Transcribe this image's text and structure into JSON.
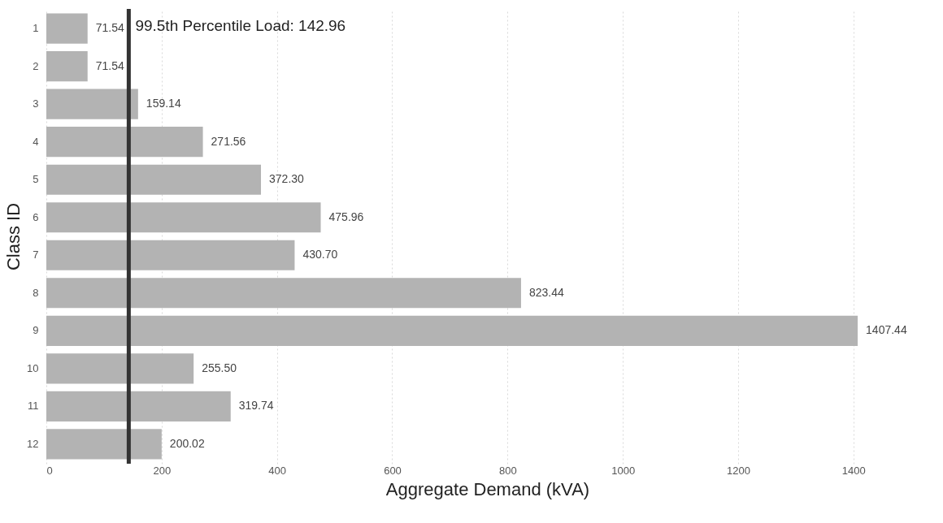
{
  "chart_data": {
    "type": "bar",
    "orientation": "horizontal",
    "xlabel": "Aggregate Demand (kVA)",
    "ylabel": "Class ID",
    "categories": [
      "1",
      "2",
      "3",
      "4",
      "5",
      "6",
      "7",
      "8",
      "9",
      "10",
      "11",
      "12"
    ],
    "values": [
      71.54,
      71.54,
      159.14,
      271.56,
      372.3,
      475.96,
      430.7,
      823.44,
      1407.44,
      255.5,
      319.74,
      200.02
    ],
    "value_labels": [
      "71.54",
      "71.54",
      "159.14",
      "271.56",
      "372.30",
      "475.96",
      "430.70",
      "823.44",
      "1407.44",
      "255.50",
      "319.74",
      "200.02"
    ],
    "color": "#b3b3b3",
    "xlim": [
      0,
      1530
    ],
    "xticks": [
      0,
      200,
      400,
      600,
      800,
      1000,
      1200,
      1400
    ],
    "grid": "x",
    "ref_lines": [
      {
        "axis": "x",
        "value": 142.96,
        "label": "99.5th Percentile Load: 142.96",
        "color": "#333333"
      }
    ]
  }
}
